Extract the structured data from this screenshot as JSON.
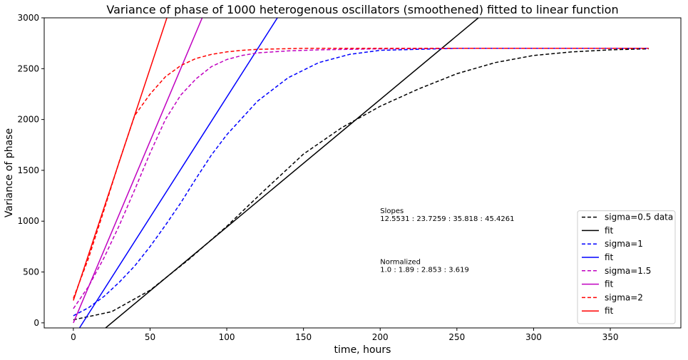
{
  "chart_data": {
    "type": "line",
    "title": "Variance of phase of 1000 heterogenous oscillators (smoothened) fitted to linear function",
    "xlabel": "time, hours",
    "ylabel": "Variance of phase",
    "xlim": [
      -19,
      396
    ],
    "ylim": [
      -50,
      3000
    ],
    "xticks": [
      0,
      50,
      100,
      150,
      200,
      250,
      300,
      350
    ],
    "yticks": [
      0,
      500,
      1000,
      1500,
      2000,
      2500,
      3000
    ],
    "legend_position": "lower-right",
    "grid": false,
    "annotations": [
      {
        "x": 200,
        "y": 1000,
        "lines": [
          "Slopes",
          "12.5531 : 23.7259 : 35.818 : 45.4261"
        ]
      },
      {
        "x": 200,
        "y": 500,
        "lines": [
          "Normalized",
          "1.0 : 1.89 : 2.853 : 3.619"
        ]
      }
    ],
    "series": [
      {
        "name": "sigma=0.5 data",
        "color": "#000000",
        "style": "dashed",
        "x": [
          0,
          25,
          50,
          75,
          100,
          125,
          150,
          175,
          200,
          225,
          250,
          275,
          300,
          325,
          350,
          375
        ],
        "y": [
          30,
          110,
          320,
          620,
          950,
          1310,
          1660,
          1920,
          2130,
          2300,
          2450,
          2560,
          2630,
          2665,
          2685,
          2695
        ]
      },
      {
        "name": "fit",
        "color": "#000000",
        "style": "solid",
        "x": [
          21,
          264
        ],
        "y": [
          -50,
          3000
        ]
      },
      {
        "name": "sigma=1",
        "color": "#0000ff",
        "style": "dashed",
        "x": [
          0,
          10,
          20,
          30,
          40,
          50,
          60,
          70,
          80,
          90,
          100,
          120,
          140,
          160,
          180,
          200,
          250,
          300,
          375
        ],
        "y": [
          70,
          150,
          260,
          400,
          560,
          750,
          960,
          1180,
          1420,
          1650,
          1850,
          2180,
          2410,
          2560,
          2640,
          2680,
          2700,
          2700,
          2700
        ]
      },
      {
        "name": "fit",
        "color": "#0000ff",
        "style": "solid",
        "x": [
          4,
          133
        ],
        "y": [
          -50,
          3000
        ]
      },
      {
        "name": "sigma=1.5",
        "color": "#c000c0",
        "style": "dashed",
        "x": [
          0,
          10,
          20,
          30,
          40,
          50,
          60,
          70,
          80,
          90,
          100,
          110,
          120,
          140,
          160,
          200,
          250,
          375
        ],
        "y": [
          140,
          360,
          640,
          960,
          1310,
          1670,
          2000,
          2240,
          2400,
          2520,
          2590,
          2630,
          2655,
          2675,
          2685,
          2695,
          2700,
          2700
        ]
      },
      {
        "name": "fit",
        "color": "#c000c0",
        "style": "solid",
        "x": [
          0,
          84
        ],
        "y": [
          0,
          3000
        ]
      },
      {
        "name": "sigma=2",
        "color": "#ff0000",
        "style": "dashed",
        "x": [
          0,
          10,
          20,
          30,
          40,
          50,
          60,
          70,
          80,
          90,
          100,
          110,
          120,
          150,
          200,
          375
        ],
        "y": [
          240,
          640,
          1110,
          1590,
          2040,
          2250,
          2420,
          2530,
          2600,
          2640,
          2665,
          2680,
          2690,
          2700,
          2700,
          2700
        ]
      },
      {
        "name": "fit",
        "color": "#ff0000",
        "style": "solid",
        "x": [
          0,
          61
        ],
        "y": [
          220,
          3000
        ]
      }
    ]
  }
}
